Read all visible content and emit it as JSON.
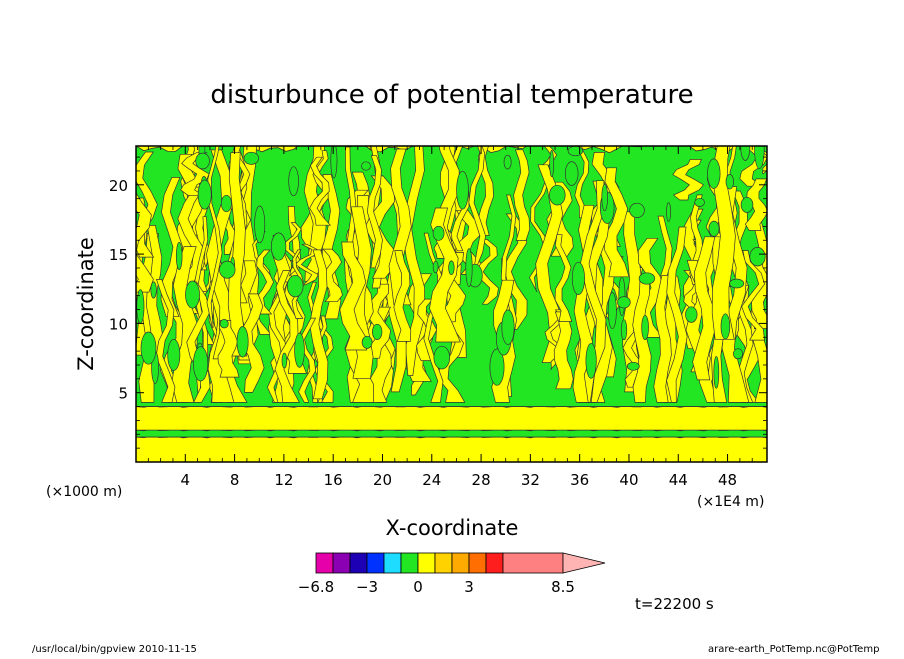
{
  "chart_data": {
    "type": "heatmap",
    "title": "disturbunce of potential temperature",
    "xlabel": "X-coordinate",
    "ylabel": "Z-coordinate",
    "x_unit_left": "(×1000 m)",
    "x_unit_right": "(×1E4 m)",
    "xlim": [
      0,
      51.2
    ],
    "ylim": [
      0,
      22.8
    ],
    "xticks": [
      4,
      8,
      12,
      16,
      20,
      24,
      28,
      32,
      36,
      40,
      44,
      48
    ],
    "yticks": [
      5,
      10,
      15,
      20
    ],
    "grid": false,
    "colorbar": {
      "colors": [
        "#e600aa",
        "#8c00b4",
        "#1e00b4",
        "#0032ff",
        "#1edcff",
        "#22e622",
        "#ffff00",
        "#ffd200",
        "#ffaa00",
        "#ff6e00",
        "#ff1e1e",
        "#ff8080",
        "#ffb4b4"
      ],
      "labels": [
        "−6.8",
        "−3",
        "0",
        "3",
        "8.5"
      ]
    },
    "layers": [
      {
        "z_from": 0.0,
        "z_to": 1.8,
        "value_class": "yellow",
        "color": "#ffff00"
      },
      {
        "z_from": 1.8,
        "z_to": 2.3,
        "value_class": "green",
        "color": "#22e622"
      },
      {
        "z_from": 2.3,
        "z_to": 4.0,
        "value_class": "yellow",
        "color": "#ffff00"
      },
      {
        "z_from": 4.0,
        "z_to": 22.8,
        "value_class": "mixed yellow/green plumes",
        "color": "#22e622"
      }
    ],
    "time_label": "t=22200 s"
  },
  "footer": {
    "left": "/usr/local/bin/gpview   2010-11-15",
    "right": "arare-earth_PotTemp.nc@PotTemp"
  }
}
